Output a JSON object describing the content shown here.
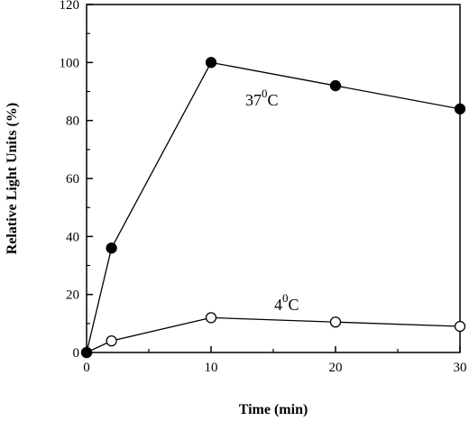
{
  "chart_data": {
    "type": "line",
    "xlabel": "Time  (min)",
    "ylabel": "Relative Light Units (%)",
    "xlim": [
      0,
      30
    ],
    "ylim": [
      0,
      120
    ],
    "xticks": [
      0,
      10,
      20,
      30
    ],
    "yticks": [
      0,
      20,
      40,
      60,
      80,
      100,
      120
    ],
    "grid": false,
    "series": [
      {
        "label_base": "37",
        "label_sup": "0",
        "label_unit": "C",
        "marker": "filled-circle",
        "x": [
          0,
          2,
          10,
          20,
          30
        ],
        "y": [
          0,
          36,
          100,
          92,
          84
        ]
      },
      {
        "label_base": "4",
        "label_sup": "0",
        "label_unit": "C",
        "marker": "open-circle",
        "x": [
          0,
          2,
          10,
          20,
          30
        ],
        "y": [
          0,
          4,
          12,
          10.5,
          9
        ]
      }
    ],
    "colors": {
      "line": "#000000",
      "filled_marker": "#000000",
      "open_marker_fill": "#ffffff"
    }
  }
}
